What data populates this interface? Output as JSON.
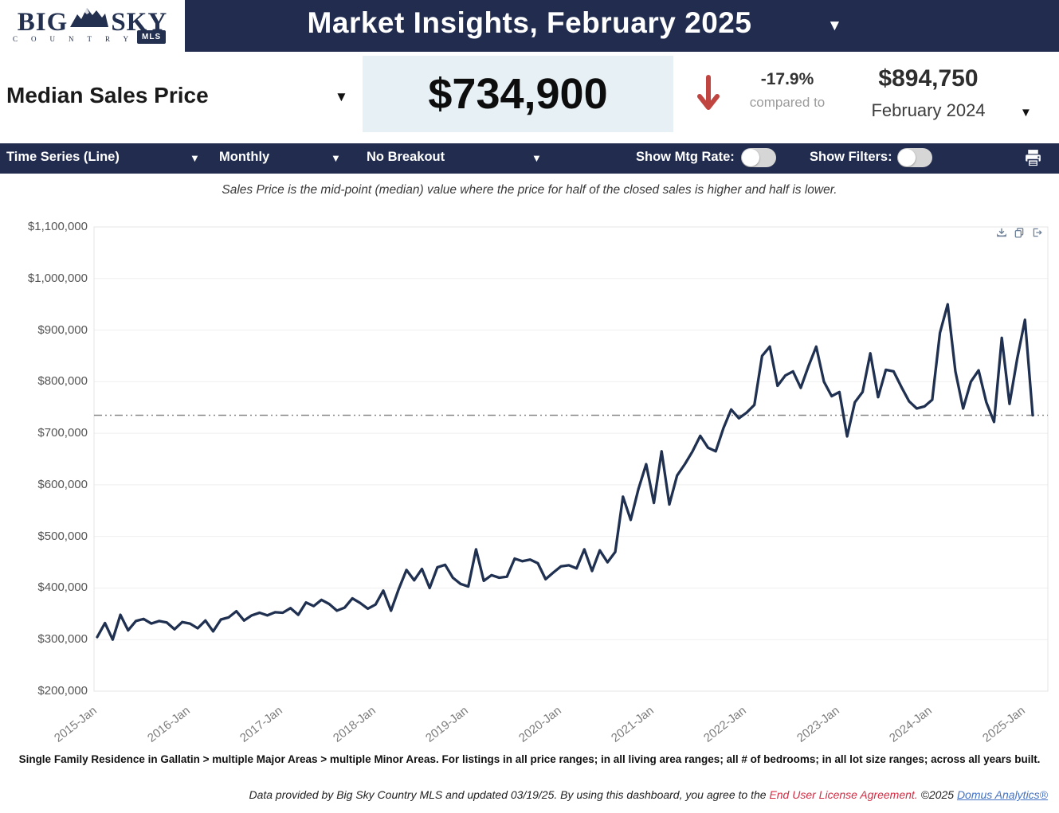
{
  "logo": {
    "big": "BIG",
    "sky": "SKY",
    "country": "COUNTRY",
    "mls": "MLS"
  },
  "header": {
    "title": "Market Insights, February 2025"
  },
  "metric": {
    "selector_label": "Median Sales Price",
    "value": "$734,900",
    "change_pct": "-17.9%",
    "compared_to": "compared to",
    "prior_value": "$894,750",
    "prior_period": "February 2024"
  },
  "toolbar": {
    "chart_type": "Time Series (Line)",
    "frequency": "Monthly",
    "breakout": "No Breakout",
    "mtg_rate_label": "Show Mtg Rate:",
    "filters_label": "Show Filters:"
  },
  "subtitle": "Sales Price is the mid-point (median) value where the price for half of the closed sales is higher and half is lower.",
  "chart_data": {
    "type": "line",
    "title": "Median Sales Price, monthly, 2015-Jan to 2025-Feb",
    "start_label": "2015-Jan",
    "end_label": "2025-Feb",
    "x_ticks": [
      "2015-Jan",
      "2016-Jan",
      "2017-Jan",
      "2018-Jan",
      "2019-Jan",
      "2020-Jan",
      "2021-Jan",
      "2022-Jan",
      "2023-Jan",
      "2024-Jan",
      "2025-Jan"
    ],
    "y_ticks": [
      "$1,100,000",
      "$1,000,000",
      "$900,000",
      "$800,000",
      "$700,000",
      "$600,000",
      "$500,000",
      "$400,000",
      "$300,000",
      "$200,000"
    ],
    "ylim": [
      200000,
      1100000
    ],
    "grid": true,
    "reference_line_value": 734900,
    "line_color": "#1f3050",
    "reference_line_color": "#888888",
    "values": [
      305000,
      332000,
      300000,
      348000,
      318000,
      336000,
      340000,
      331000,
      336000,
      333000,
      320000,
      334000,
      331000,
      322000,
      337000,
      316000,
      339000,
      343000,
      355000,
      337000,
      347000,
      352000,
      347000,
      353000,
      352000,
      361000,
      348000,
      372000,
      365000,
      377000,
      369000,
      356000,
      362000,
      380000,
      371000,
      360000,
      368000,
      395000,
      356000,
      398000,
      435000,
      415000,
      437000,
      400000,
      440000,
      445000,
      420000,
      408000,
      403000,
      475000,
      414000,
      425000,
      420000,
      422000,
      457000,
      452000,
      455000,
      448000,
      417000,
      430000,
      442000,
      444000,
      438000,
      475000,
      433000,
      473000,
      450000,
      470000,
      577000,
      532000,
      592000,
      640000,
      565000,
      665000,
      562000,
      618000,
      640000,
      665000,
      695000,
      672000,
      665000,
      710000,
      746000,
      729000,
      740000,
      755000,
      850000,
      868000,
      792000,
      812000,
      820000,
      788000,
      830000,
      868000,
      800000,
      772000,
      780000,
      694000,
      760000,
      780000,
      855000,
      770000,
      823000,
      820000,
      790000,
      762000,
      748000,
      752000,
      765000,
      894750,
      950000,
      820000,
      748000,
      800000,
      822000,
      760000,
      722000,
      885000,
      757000,
      845000,
      920000,
      734900
    ]
  },
  "colors": {
    "header_navy": "#212c4f",
    "value_box_bg": "#e7f0f4",
    "down_arrow_red": "#c0443f",
    "eula_red": "#d12f45",
    "brand_blue": "#4472c4"
  },
  "footer": {
    "filters_line": "Single Family Residence in Gallatin > multiple Major Areas > multiple Minor Areas. For listings in all price ranges; in all living area ranges; all # of bedrooms; in all lot size ranges; across all years built.",
    "credits_prefix": "Data provided by Big Sky Country MLS and updated 03/19/25.  By using this dashboard, you agree to the ",
    "credits_eula": "End User License Agreement.",
    "credits_mid": "  ©2025 ",
    "credits_brand": "Domus Analytics®"
  }
}
